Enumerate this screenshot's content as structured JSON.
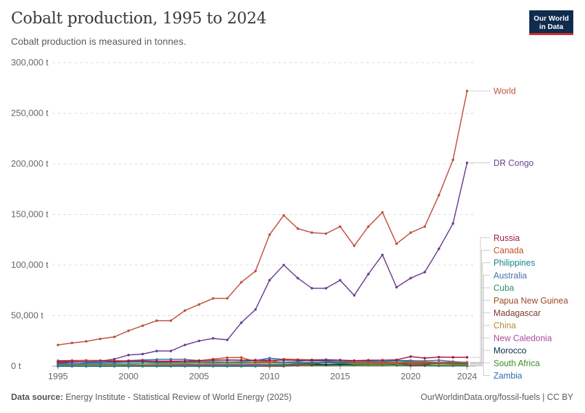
{
  "header": {
    "title": "Cobalt production, 1995 to 2024",
    "subtitle": "Cobalt production is measured in tonnes."
  },
  "logo": {
    "line1": "Our World",
    "line2": "in Data"
  },
  "footer": {
    "source_label": "Data source:",
    "source_text": "Energy Institute - Statistical Review of World Energy (2025)",
    "credit": "OurWorldinData.org/fossil-fuels | CC BY"
  },
  "chart_data": {
    "type": "line",
    "title": "Cobalt production, 1995 to 2024",
    "subtitle": "Cobalt production is measured in tonnes.",
    "ylim": [
      0,
      300000
    ],
    "xlim": [
      1995,
      2024
    ],
    "y_ticks": [
      0,
      50000,
      100000,
      150000,
      200000,
      250000,
      300000
    ],
    "y_tick_labels": [
      "0 t",
      "50,000 t",
      "100,000 t",
      "150,000 t",
      "200,000 t",
      "250,000 t",
      "300,000 t"
    ],
    "x_ticks": [
      1995,
      2000,
      2005,
      2010,
      2015,
      2020,
      2024
    ],
    "x_tick_labels": [
      "1995",
      "2000",
      "2005",
      "2010",
      "2015",
      "2020",
      "2024"
    ],
    "grid": "horizontal dashed",
    "legend": "right, end-of-line labels",
    "x": [
      1995,
      1996,
      1997,
      1998,
      1999,
      2000,
      2001,
      2002,
      2003,
      2004,
      2005,
      2006,
      2007,
      2008,
      2009,
      2010,
      2011,
      2012,
      2013,
      2014,
      2015,
      2016,
      2017,
      2018,
      2019,
      2020,
      2021,
      2022,
      2023,
      2024
    ],
    "series": [
      {
        "name": "World",
        "color": "#c0503f",
        "values": [
          21000,
          23000,
          24500,
          27000,
          29000,
          35000,
          40000,
          45000,
          45000,
          55000,
          61000,
          67000,
          67000,
          83000,
          94000,
          130000,
          149000,
          136000,
          132000,
          131000,
          138000,
          119000,
          138000,
          152000,
          121000,
          132000,
          138000,
          169000,
          204000,
          272000
        ]
      },
      {
        "name": "DR Congo",
        "color": "#6b3d8f",
        "values": [
          3000,
          4000,
          4500,
          5000,
          7000,
          11000,
          12000,
          15000,
          15000,
          21000,
          25000,
          27500,
          26000,
          43000,
          56000,
          85000,
          100000,
          87000,
          77000,
          77000,
          85000,
          70000,
          91000,
          110000,
          78000,
          87000,
          93000,
          116000,
          141000,
          201000
        ]
      },
      {
        "name": "Russia",
        "color": "#a0184b",
        "values": [
          4500,
          4700,
          4500,
          4800,
          4500,
          5000,
          5000,
          5000,
          5000,
          5000,
          5200,
          6000,
          6000,
          6000,
          6000,
          6000,
          6000,
          6000,
          6000,
          6000,
          6000,
          5500,
          5900,
          5900,
          6300,
          9500,
          8000,
          9000,
          8800,
          8800
        ]
      },
      {
        "name": "Canada",
        "color": "#c84f25",
        "values": [
          5500,
          5700,
          5800,
          5700,
          5500,
          5300,
          5300,
          5000,
          4300,
          5000,
          5500,
          7000,
          8500,
          8600,
          4500,
          4000,
          7000,
          6500,
          6300,
          6000,
          6000,
          4300,
          3800,
          3500,
          3300,
          4000,
          4300,
          3900,
          4000,
          3900
        ]
      },
      {
        "name": "Philippines",
        "color": "#17838c",
        "values": [
          0,
          0,
          0,
          0,
          0,
          0,
          0,
          0,
          0,
          0,
          0,
          0,
          0,
          0,
          0,
          1000,
          1500,
          2500,
          3500,
          3700,
          4000,
          3900,
          4000,
          4500,
          5000,
          4500,
          4000,
          3600,
          3200,
          2900
        ]
      },
      {
        "name": "Australia",
        "color": "#4a6fa8",
        "values": [
          2500,
          2600,
          3000,
          3100,
          4100,
          5600,
          6200,
          6700,
          6900,
          6700,
          5600,
          6000,
          6200,
          6000,
          6000,
          4600,
          4000,
          4500,
          6300,
          6500,
          6000,
          5500,
          5000,
          4700,
          5700,
          5600,
          5300,
          5900,
          4600,
          3600
        ]
      },
      {
        "name": "Cuba",
        "color": "#2a8f6b",
        "values": [
          1600,
          2000,
          2000,
          2100,
          2200,
          2300,
          3200,
          3000,
          3400,
          3600,
          4000,
          3700,
          3800,
          3700,
          3800,
          3800,
          3600,
          3700,
          3800,
          3700,
          3400,
          3600,
          3200,
          3500,
          3500,
          3600,
          3800,
          3400,
          3300,
          3300
        ]
      },
      {
        "name": "Papua New Guinea",
        "color": "#9a4a25",
        "values": [
          0,
          0,
          0,
          0,
          0,
          0,
          0,
          0,
          0,
          0,
          0,
          0,
          0,
          0,
          0,
          0,
          0,
          700,
          2000,
          3300,
          2900,
          3600,
          3000,
          3000,
          3000,
          2800,
          2900,
          3000,
          2400,
          2300
        ]
      },
      {
        "name": "Madagascar",
        "color": "#7a3a28",
        "values": [
          0,
          0,
          0,
          0,
          0,
          0,
          0,
          0,
          0,
          0,
          0,
          0,
          0,
          0,
          0,
          0,
          0,
          800,
          2500,
          3200,
          3500,
          3400,
          3300,
          3800,
          3400,
          900,
          1500,
          2900,
          3100,
          2500
        ]
      },
      {
        "name": "China",
        "color": "#b6863a",
        "values": [
          500,
          700,
          900,
          1000,
          1000,
          1500,
          1700,
          2000,
          2300,
          2500,
          2800,
          3000,
          2900,
          2800,
          2800,
          3000,
          3200,
          3200,
          3300,
          3300,
          3200,
          2300,
          2200,
          2300,
          2500,
          2300,
          2200,
          2200,
          2000,
          2000
        ]
      },
      {
        "name": "New Caledonia",
        "color": "#b04a9a",
        "values": [
          1300,
          1500,
          1600,
          1400,
          1400,
          1300,
          1300,
          1400,
          1400,
          1400,
          1500,
          1500,
          1500,
          1500,
          1400,
          1500,
          1600,
          2000,
          3000,
          4000,
          4000,
          3500,
          3000,
          2900,
          2500,
          1600,
          2000,
          2500,
          2200,
          2000
        ]
      },
      {
        "name": "Morocco",
        "color": "#0b2d4f",
        "values": [
          0,
          0,
          0,
          0,
          0,
          1200,
          1300,
          1600,
          1600,
          1700,
          1600,
          1700,
          1600,
          1600,
          1600,
          1500,
          1800,
          1500,
          1500,
          1500,
          1900,
          1800,
          2000,
          2000,
          2100,
          2000,
          2300,
          2300,
          2100,
          2100
        ]
      },
      {
        "name": "South Africa",
        "color": "#3d8f2a",
        "values": [
          500,
          500,
          500,
          600,
          500,
          600,
          600,
          700,
          600,
          700,
          700,
          700,
          700,
          700,
          700,
          700,
          800,
          800,
          800,
          900,
          900,
          900,
          900,
          900,
          1000,
          900,
          900,
          900,
          900,
          900
        ]
      },
      {
        "name": "Zambia",
        "color": "#2f6fb0",
        "values": [
          4000,
          4500,
          4000,
          3500,
          3500,
          3900,
          4600,
          4000,
          3800,
          5000,
          4000,
          4500,
          4000,
          4500,
          5500,
          8000,
          6600,
          5600,
          5400,
          5000,
          4600,
          4000,
          4200,
          3600,
          800,
          500,
          400,
          300,
          300,
          300
        ]
      }
    ]
  }
}
